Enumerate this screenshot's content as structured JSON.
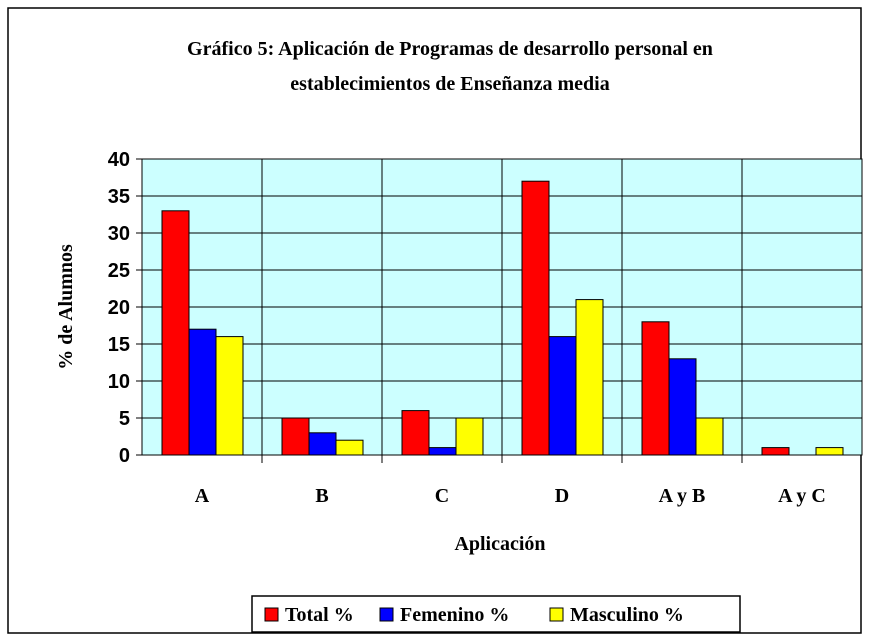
{
  "chart_data": {
    "type": "bar",
    "title": [
      "Gráfico 5: Aplicación de Programas de desarrollo personal en",
      "establecimientos de Enseñanza media"
    ],
    "x_label": "Aplicación",
    "y_label": "% de Alumnos",
    "categories": [
      "A",
      "B",
      "C",
      "D",
      "A y B",
      "A y C"
    ],
    "series": [
      {
        "name": "Total %",
        "color": "#ff0000",
        "values": [
          33,
          5,
          6,
          37,
          18,
          1
        ]
      },
      {
        "name": "Femenino %",
        "color": "#0000ff",
        "values": [
          17,
          3,
          1,
          16,
          13,
          0
        ]
      },
      {
        "name": "Masculino %",
        "color": "#ffff00",
        "values": [
          16,
          2,
          5,
          21,
          5,
          1
        ]
      }
    ],
    "ylim": [
      0,
      40
    ],
    "yticks": [
      0,
      5,
      10,
      15,
      20,
      25,
      30,
      35,
      40
    ],
    "grid": true,
    "legend": "bottom"
  }
}
